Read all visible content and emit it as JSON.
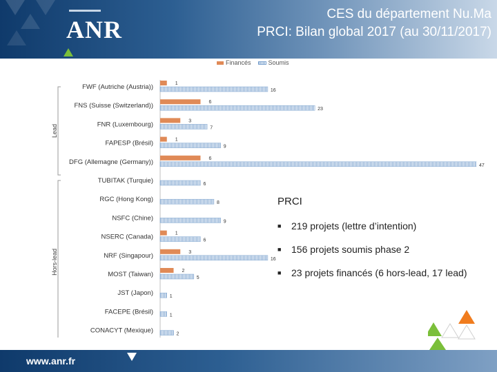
{
  "header": {
    "logo_text": "ANR",
    "title_line1": "CES du département Nu.Ma",
    "title_line2": "PRCI: Bilan global 2017 (au 30/11/2017)"
  },
  "legend": {
    "financed": "Financés",
    "submitted": "Soumis"
  },
  "colors": {
    "financed": "#e08a57",
    "submitted": "#7ea4cf",
    "header": "#1f4e82"
  },
  "chart_data": {
    "type": "bar",
    "orientation": "horizontal",
    "categories": [
      "FWF (Autriche (Austria))",
      "FNS (Suisse (Switzerland))",
      "FNR (Luxembourg)",
      "FAPESP (Brésil)",
      "DFG (Allemagne (Germany))",
      "TUBITAK (Turquie)",
      "RGC (Hong Kong)",
      "NSFC (Chine)",
      "NSERC (Canada)",
      "NRF (Singapour)",
      "MOST (Taiwan)",
      "JST (Japon)",
      "FACEPE (Brésil)",
      "CONACYT (Mexique)"
    ],
    "groups": [
      {
        "label": "Lead",
        "categories": [
          0,
          1,
          2,
          3,
          4
        ]
      },
      {
        "label": "Hors-lead",
        "categories": [
          5,
          6,
          7,
          8,
          9,
          10,
          11,
          12,
          13
        ]
      }
    ],
    "series": [
      {
        "name": "Financés",
        "values": [
          1,
          6,
          3,
          1,
          6,
          null,
          null,
          null,
          1,
          3,
          2,
          null,
          null,
          null
        ]
      },
      {
        "name": "Soumis",
        "values": [
          16,
          23,
          7,
          9,
          47,
          6,
          8,
          9,
          6,
          16,
          5,
          1,
          1,
          2
        ]
      }
    ],
    "xlim": [
      0,
      47
    ],
    "legend_position": "top"
  },
  "summary": {
    "heading": "PRCI",
    "bullets": [
      "219 projets (lettre d’intention)",
      "156 projets soumis phase 2",
      "23 projets financés (6 hors-lead, 17 lead)"
    ]
  },
  "footer": {
    "url": "www.anr.fr"
  }
}
